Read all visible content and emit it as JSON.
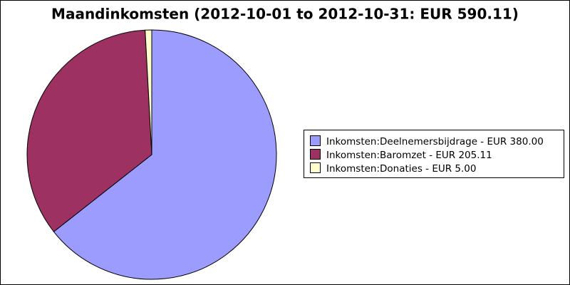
{
  "chart_data": {
    "type": "pie",
    "title": "Maandinkomsten (2012-10-01 to 2012-10-31: EUR 590.11)",
    "categories": [
      "Inkomsten:Deelnemersbijdrage - EUR 380.00",
      "Inkomsten:Baromzet - EUR 205.11",
      "Inkomsten:Donaties - EUR 5.00"
    ],
    "values": [
      380.0,
      205.11,
      5.0
    ],
    "colors": [
      "#9c9cff",
      "#9c3162",
      "#ffffce"
    ],
    "legend": "right"
  }
}
